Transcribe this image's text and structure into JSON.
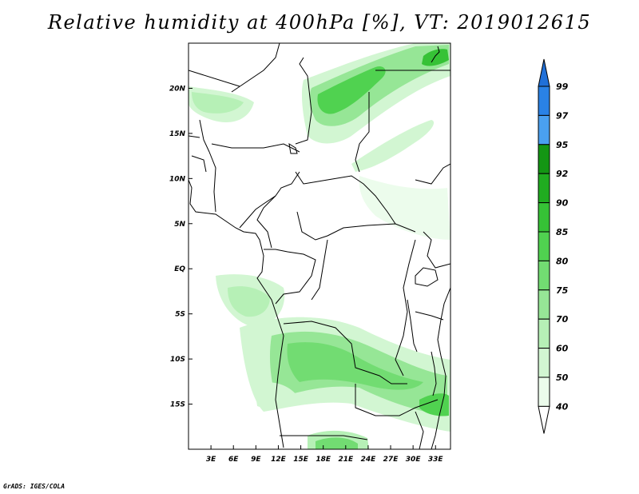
{
  "title": "Relative humidity at 400hPa [%], VT: 2019012615",
  "credit": "GrADS: IGES/COLA",
  "lon_ticks": [
    "3E",
    "6E",
    "9E",
    "12E",
    "15E",
    "18E",
    "21E",
    "24E",
    "27E",
    "30E",
    "33E"
  ],
  "lat_ticks": [
    "20N",
    "15N",
    "10N",
    "5N",
    "EQ",
    "5S",
    "10S",
    "15S"
  ],
  "colorbar": {
    "levels": [
      "99",
      "97",
      "95",
      "92",
      "90",
      "85",
      "80",
      "75",
      "70",
      "60",
      "50",
      "40"
    ],
    "colors": [
      "#2070d8",
      "#2a82e6",
      "#4aa0f0",
      "#149614",
      "#20ac20",
      "#36c236",
      "#50d250",
      "#72dc72",
      "#96e696",
      "#b6f0b6",
      "#d2f6d2",
      "#ecfcec"
    ]
  },
  "map_extent": {
    "lon_min": 0,
    "lon_max": 35,
    "lat_min": -20,
    "lat_max": 25
  }
}
